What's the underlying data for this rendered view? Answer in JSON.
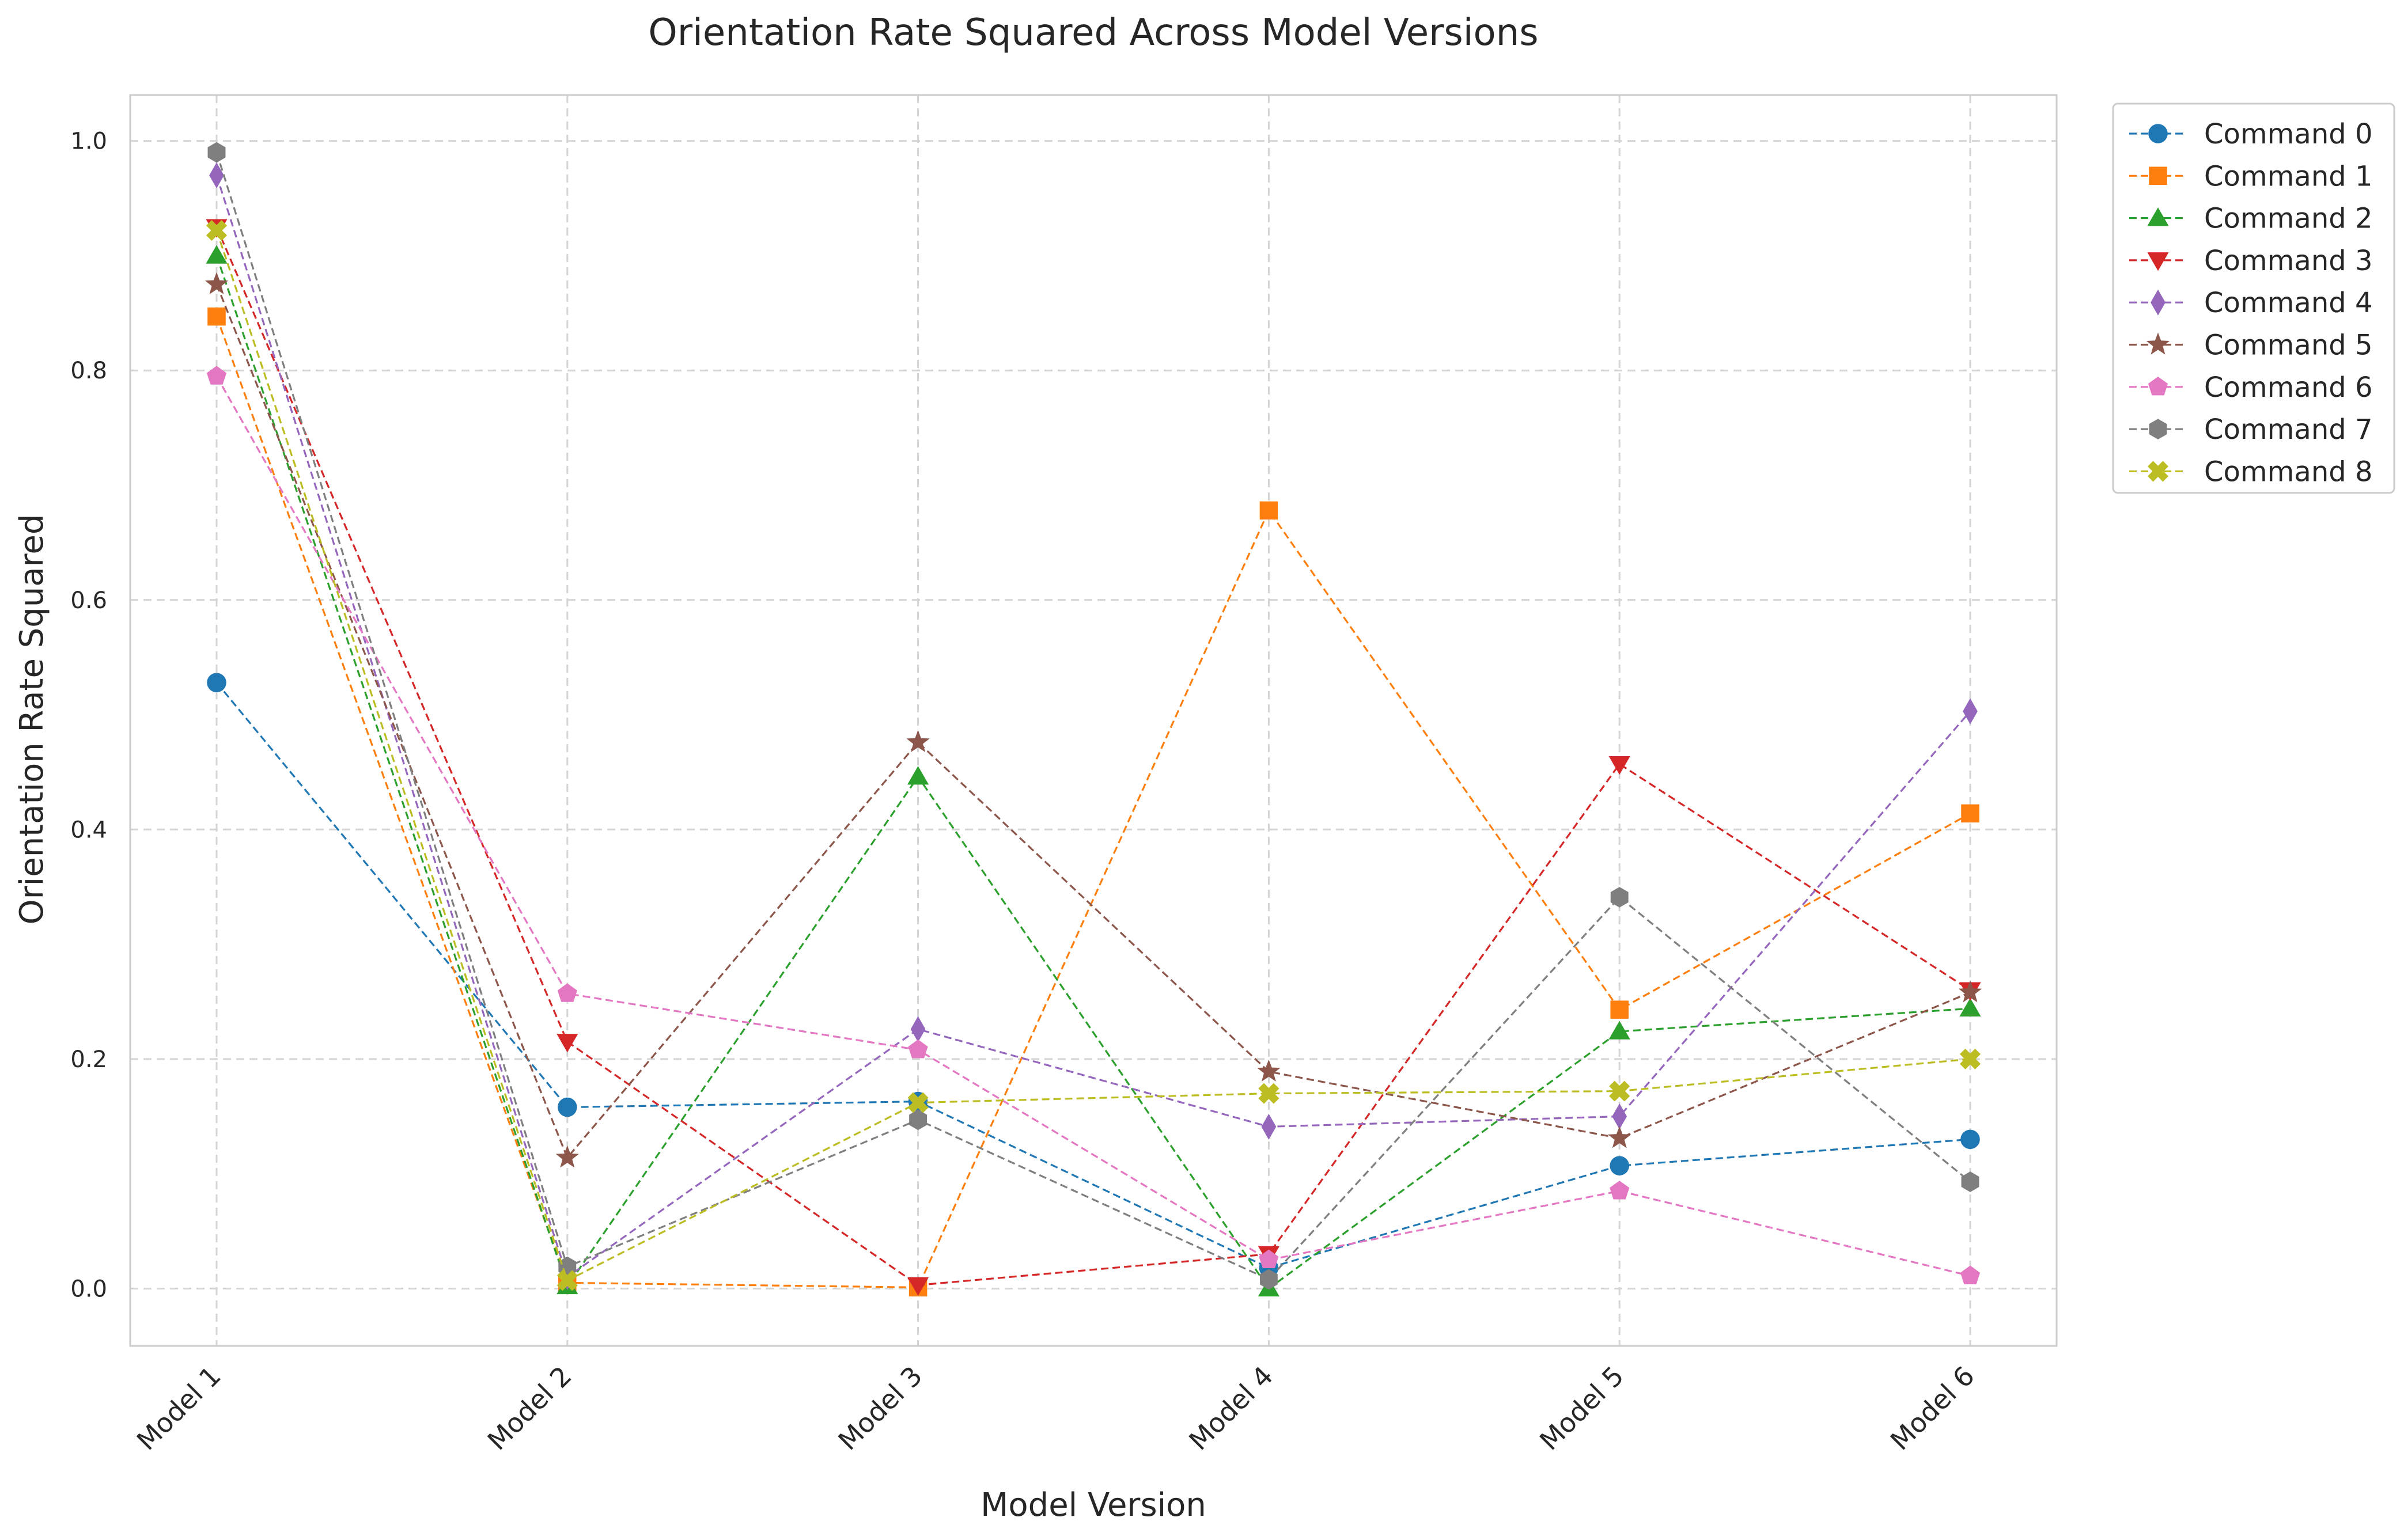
{
  "chart_data": {
    "type": "line",
    "title": "Orientation Rate Squared Across Model Versions",
    "xlabel": "Model Version",
    "ylabel": "Orientation Rate Squared",
    "categories": [
      "Model 1",
      "Model 2",
      "Model 3",
      "Model 4",
      "Model 5",
      "Model 6"
    ],
    "ylim": [
      -0.05,
      1.04
    ],
    "yticks": [
      0.0,
      0.2,
      0.4,
      0.6,
      0.8,
      1.0
    ],
    "ytick_labels": [
      "0.0",
      "0.2",
      "0.4",
      "0.6",
      "0.8",
      "1.0"
    ],
    "grid": true,
    "legend_position": "outside-top-right",
    "line_style": "dashed",
    "series": [
      {
        "name": "Command 0",
        "color": "#1f77b4",
        "marker": "circle",
        "values": [
          0.528,
          0.158,
          0.163,
          0.018,
          0.107,
          0.13
        ]
      },
      {
        "name": "Command 1",
        "color": "#ff7f0e",
        "marker": "square",
        "values": [
          0.847,
          0.005,
          0.001,
          0.678,
          0.243,
          0.414
        ]
      },
      {
        "name": "Command 2",
        "color": "#2ca02c",
        "marker": "triangle-up",
        "values": [
          0.9,
          0.002,
          0.446,
          0.0,
          0.224,
          0.244
        ]
      },
      {
        "name": "Command 3",
        "color": "#d62728",
        "marker": "triangle-down",
        "values": [
          0.925,
          0.215,
          0.003,
          0.03,
          0.457,
          0.26
        ]
      },
      {
        "name": "Command 4",
        "color": "#9467bd",
        "marker": "thin-diamond",
        "values": [
          0.97,
          0.01,
          0.226,
          0.141,
          0.15,
          0.503
        ]
      },
      {
        "name": "Command 5",
        "color": "#8c564b",
        "marker": "star",
        "values": [
          0.875,
          0.114,
          0.476,
          0.189,
          0.131,
          0.258
        ]
      },
      {
        "name": "Command 6",
        "color": "#e377c2",
        "marker": "pentagon",
        "values": [
          0.795,
          0.257,
          0.208,
          0.025,
          0.085,
          0.011
        ]
      },
      {
        "name": "Command 7",
        "color": "#7f7f7f",
        "marker": "hexagon",
        "values": [
          0.99,
          0.019,
          0.147,
          0.008,
          0.341,
          0.093
        ]
      },
      {
        "name": "Command 8",
        "color": "#bcbd22",
        "marker": "x-filled",
        "values": [
          0.922,
          0.007,
          0.162,
          0.17,
          0.172,
          0.2
        ]
      }
    ]
  }
}
